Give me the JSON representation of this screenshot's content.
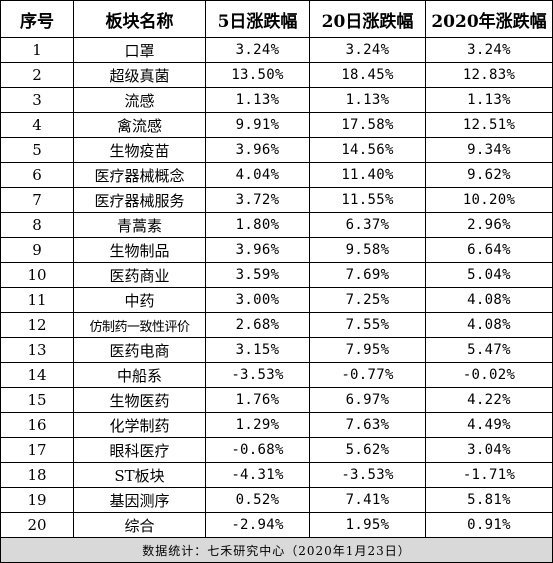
{
  "table": {
    "headers": [
      "序号",
      "板块名称",
      "5日涨跌幅",
      "20日涨跌幅",
      "2020年涨跌幅"
    ],
    "rows": [
      [
        "1",
        "口罩",
        "3.24%",
        "3.24%",
        "3.24%"
      ],
      [
        "2",
        "超级真菌",
        "13.50%",
        "18.45%",
        "12.83%"
      ],
      [
        "3",
        "流感",
        "1.13%",
        "1.13%",
        "1.13%"
      ],
      [
        "4",
        "禽流感",
        "9.91%",
        "17.58%",
        "12.51%"
      ],
      [
        "5",
        "生物疫苗",
        "3.96%",
        "14.56%",
        "9.34%"
      ],
      [
        "6",
        "医疗器械概念",
        "4.04%",
        "11.40%",
        "9.62%"
      ],
      [
        "7",
        "医疗器械服务",
        "3.72%",
        "11.55%",
        "10.20%"
      ],
      [
        "8",
        "青蒿素",
        "1.80%",
        "6.37%",
        "2.96%"
      ],
      [
        "9",
        "生物制品",
        "3.96%",
        "9.58%",
        "6.64%"
      ],
      [
        "10",
        "医药商业",
        "3.59%",
        "7.69%",
        "5.04%"
      ],
      [
        "11",
        "中药",
        "3.00%",
        "7.25%",
        "4.08%"
      ],
      [
        "12",
        "仿制药一致性评价",
        "2.68%",
        "7.55%",
        "4.08%"
      ],
      [
        "13",
        "医药电商",
        "3.15%",
        "7.95%",
        "5.47%"
      ],
      [
        "14",
        "中船系",
        "-3.53%",
        "-0.77%",
        "-0.02%"
      ],
      [
        "15",
        "生物医药",
        "1.76%",
        "6.97%",
        "4.22%"
      ],
      [
        "16",
        "化学制药",
        "1.29%",
        "7.63%",
        "4.49%"
      ],
      [
        "17",
        "眼科医疗",
        "-0.68%",
        "5.62%",
        "3.04%"
      ],
      [
        "18",
        "ST板块",
        "-4.31%",
        "-3.53%",
        "-1.71%"
      ],
      [
        "19",
        "基因测序",
        "0.52%",
        "7.41%",
        "5.81%"
      ],
      [
        "20",
        "综合",
        "-2.94%",
        "1.95%",
        "0.91%"
      ]
    ]
  },
  "footer": {
    "source": "数据统计：七禾研究中心（2020年1月23日）"
  },
  "colors": {
    "border": "#000000",
    "footer_bg": "#d9d9d9",
    "text": "#000000"
  }
}
